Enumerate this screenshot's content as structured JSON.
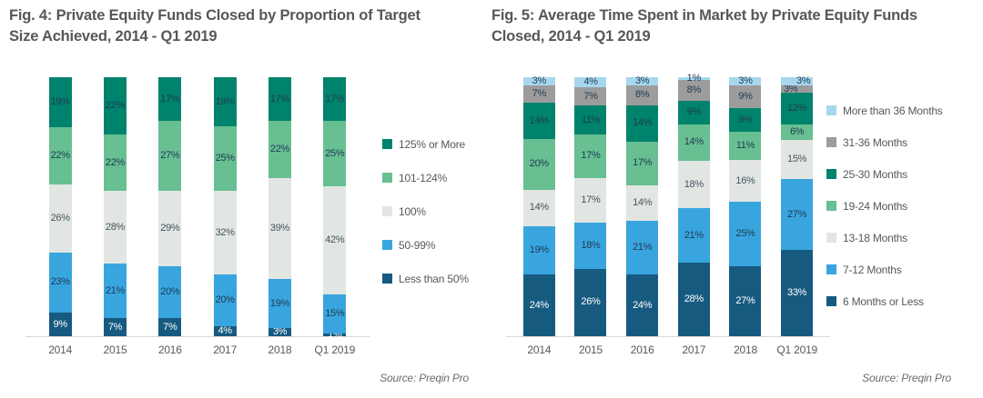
{
  "colors": {
    "title_text": "#555759",
    "axis_text": "#57585a",
    "source_text": "#6d6e70",
    "baseline": "#d8d8d8",
    "label_dark": "#1e3a52",
    "label_light": "#ffffff"
  },
  "chart_data": [
    {
      "id": "fig4",
      "type": "bar",
      "stacked": true,
      "title_line1": "Fig. 4: Private Equity Funds Closed by Proportion of Target",
      "title_line2": "Size Achieved, 2014 - Q1 2019",
      "source": "Source: Preqin Pro",
      "unit": "%",
      "ylim": [
        0,
        100
      ],
      "grid": false,
      "legend_position": "right",
      "categories": [
        "2014",
        "2015",
        "2016",
        "2017",
        "2018",
        "Q1 2019"
      ],
      "series": [
        {
          "name": "Less than 50%",
          "color": "#175a80",
          "label_color": "#ffffff",
          "values": [
            9,
            7,
            7,
            4,
            3,
            1
          ]
        },
        {
          "name": "50-99%",
          "color": "#39a5de",
          "label_color": "#1e3a52",
          "values": [
            23,
            21,
            20,
            20,
            19,
            15
          ]
        },
        {
          "name": "100%",
          "color": "#e2e6e3",
          "label_color": "#44535e",
          "values": [
            26,
            28,
            29,
            32,
            39,
            42
          ]
        },
        {
          "name": "101-124%",
          "color": "#68bf92",
          "label_color": "#1e3a52",
          "values": [
            22,
            22,
            27,
            25,
            22,
            25
          ]
        },
        {
          "name": "125% or More",
          "color": "#00836c",
          "label_color": "#1e3a52",
          "values": [
            19,
            22,
            17,
            19,
            17,
            17
          ]
        }
      ]
    },
    {
      "id": "fig5",
      "type": "bar",
      "stacked": true,
      "title_line1": "Fig. 5: Average Time Spent in Market by Private Equity Funds",
      "title_line2": "Closed, 2014 - Q1 2019",
      "source": "Source: Preqin Pro",
      "unit": "%",
      "ylim": [
        0,
        100
      ],
      "grid": false,
      "legend_position": "right",
      "categories": [
        "2014",
        "2015",
        "2016",
        "2017",
        "2018",
        "Q1 2019"
      ],
      "series": [
        {
          "name": "6 Months or Less",
          "color": "#175a80",
          "label_color": "#ffffff",
          "values": [
            24,
            26,
            24,
            28,
            27,
            33
          ]
        },
        {
          "name": "7-12 Months",
          "color": "#39a5de",
          "label_color": "#1e3a52",
          "values": [
            19,
            18,
            21,
            21,
            25,
            27
          ]
        },
        {
          "name": "13-18 Months",
          "color": "#e2e6e3",
          "label_color": "#44535e",
          "values": [
            14,
            17,
            14,
            18,
            16,
            15
          ]
        },
        {
          "name": "19-24 Months",
          "color": "#68bf92",
          "label_color": "#1e3a52",
          "values": [
            20,
            17,
            17,
            14,
            11,
            6
          ]
        },
        {
          "name": "25-30 Months",
          "color": "#00836c",
          "label_color": "#1e3a52",
          "values": [
            14,
            11,
            14,
            9,
            9,
            12
          ]
        },
        {
          "name": "31-36 Months",
          "color": "#9c9c9c",
          "label_color": "#1e3a52",
          "values": [
            7,
            7,
            8,
            8,
            9,
            3
          ]
        },
        {
          "name": "More than 36 Months",
          "color": "#a7d7ef",
          "label_color": "#1e3a52",
          "values": [
            3,
            4,
            3,
            1,
            3,
            3
          ]
        }
      ]
    }
  ]
}
